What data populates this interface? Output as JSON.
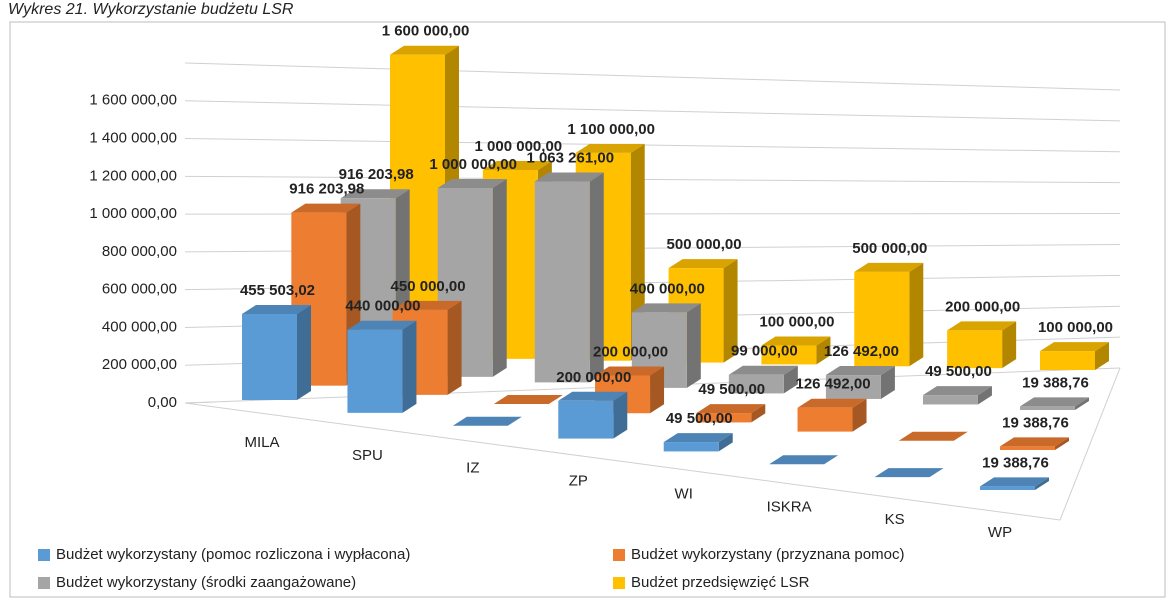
{
  "chart_data": {
    "type": "bar3d",
    "title": "Wykres 21. Wykorzystanie budżetu LSR",
    "categories": [
      "MILA",
      "SPU",
      "IZ",
      "ZP",
      "WI",
      "ISKRA",
      "KS",
      "WP"
    ],
    "series": [
      {
        "name": "Budżet wykorzystany (pomoc rozliczona i wypłacona)",
        "color": "#5b9bd5",
        "values": [
          455503.02,
          440000,
          0,
          200000,
          49500,
          0,
          0,
          19388.76
        ],
        "value_labels": [
          "455 503,02",
          "440 000,00",
          null,
          "200 000,00",
          "49 500,00",
          null,
          null,
          "19 388,76"
        ]
      },
      {
        "name": "Budżet wykorzystany (przyznana pomoc)",
        "color": "#ed7d31",
        "values": [
          916203.98,
          450000,
          0,
          200000,
          49500,
          126492,
          0,
          19388.76
        ],
        "value_labels": [
          "916 203,98",
          "450 000,00",
          null,
          "200 000,00",
          "49 500,00",
          "126 492,00",
          null,
          "19 388,76"
        ]
      },
      {
        "name": "Budżet wykorzystany (środki zaangażowane)",
        "color": "#a5a5a5",
        "values": [
          916203.98,
          1000000,
          1063261,
          400000,
          99000,
          126492,
          49500,
          19388.76
        ],
        "value_labels": [
          "916 203,98",
          "1 000 000,00",
          "1 063 261,00",
          "400 000,00",
          "99 000,00",
          "126 492,00",
          "49 500,00",
          "19 388,76"
        ]
      },
      {
        "name": "Budżet przedsięwzięć LSR",
        "color": "#ffc000",
        "values": [
          1600000,
          1000000,
          1100000,
          500000,
          100000,
          500000,
          200000,
          100000
        ],
        "value_labels": [
          "1 600 000,00",
          "1 000 000,00",
          "1 100 000,00",
          "500 000,00",
          "100 000,00",
          "500 000,00",
          "200 000,00",
          "100 000,00"
        ]
      }
    ],
    "ylim": [
      0,
      1800000
    ],
    "yticks": [
      {
        "value": 0,
        "label": "0,00"
      },
      {
        "value": 200000,
        "label": "200 000,00"
      },
      {
        "value": 400000,
        "label": "400 000,00"
      },
      {
        "value": 600000,
        "label": "600 000,00"
      },
      {
        "value": 800000,
        "label": "800 000,00"
      },
      {
        "value": 1000000,
        "label": "1 000 000,00"
      },
      {
        "value": 1200000,
        "label": "1 200 000,00"
      },
      {
        "value": 1400000,
        "label": "1 400 000,00"
      },
      {
        "value": 1600000,
        "label": "1 600 000,00"
      }
    ],
    "grid": true
  }
}
